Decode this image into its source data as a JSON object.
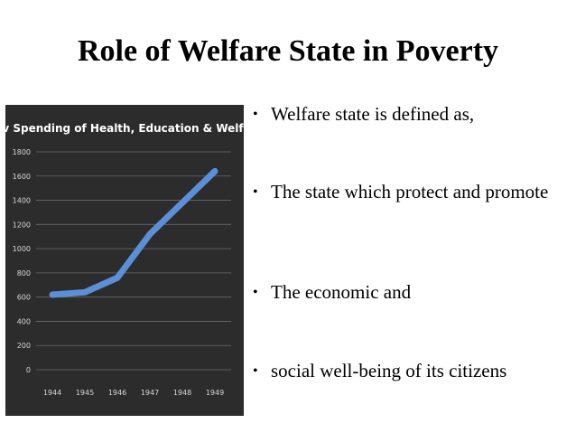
{
  "slide": {
    "title": "Role of Welfare State in Poverty",
    "bullets": [
      "Welfare state is defined as,",
      "The state which protect and promote",
      "The economic and",
      "social well-being of its citizens"
    ],
    "bullet_glyph": "•"
  },
  "chart_data": {
    "type": "line",
    "title": "Gov Spending of Health, Education & Welfare",
    "categories": [
      "1944",
      "1945",
      "1946",
      "1947",
      "1948",
      "1949"
    ],
    "series": [
      {
        "values": [
          620,
          640,
          760,
          1120,
          1380,
          1640
        ]
      }
    ],
    "yticks": [
      "0",
      "200",
      "400",
      "600",
      "800",
      "1000",
      "1200",
      "1400",
      "1600",
      "1800"
    ],
    "ylim": [
      0,
      1800
    ],
    "grid": true,
    "colors": {
      "background": "#2c2c2c",
      "line": "#5b8fd6",
      "grid": "#6a6a6a",
      "text": "#ffffff"
    }
  }
}
